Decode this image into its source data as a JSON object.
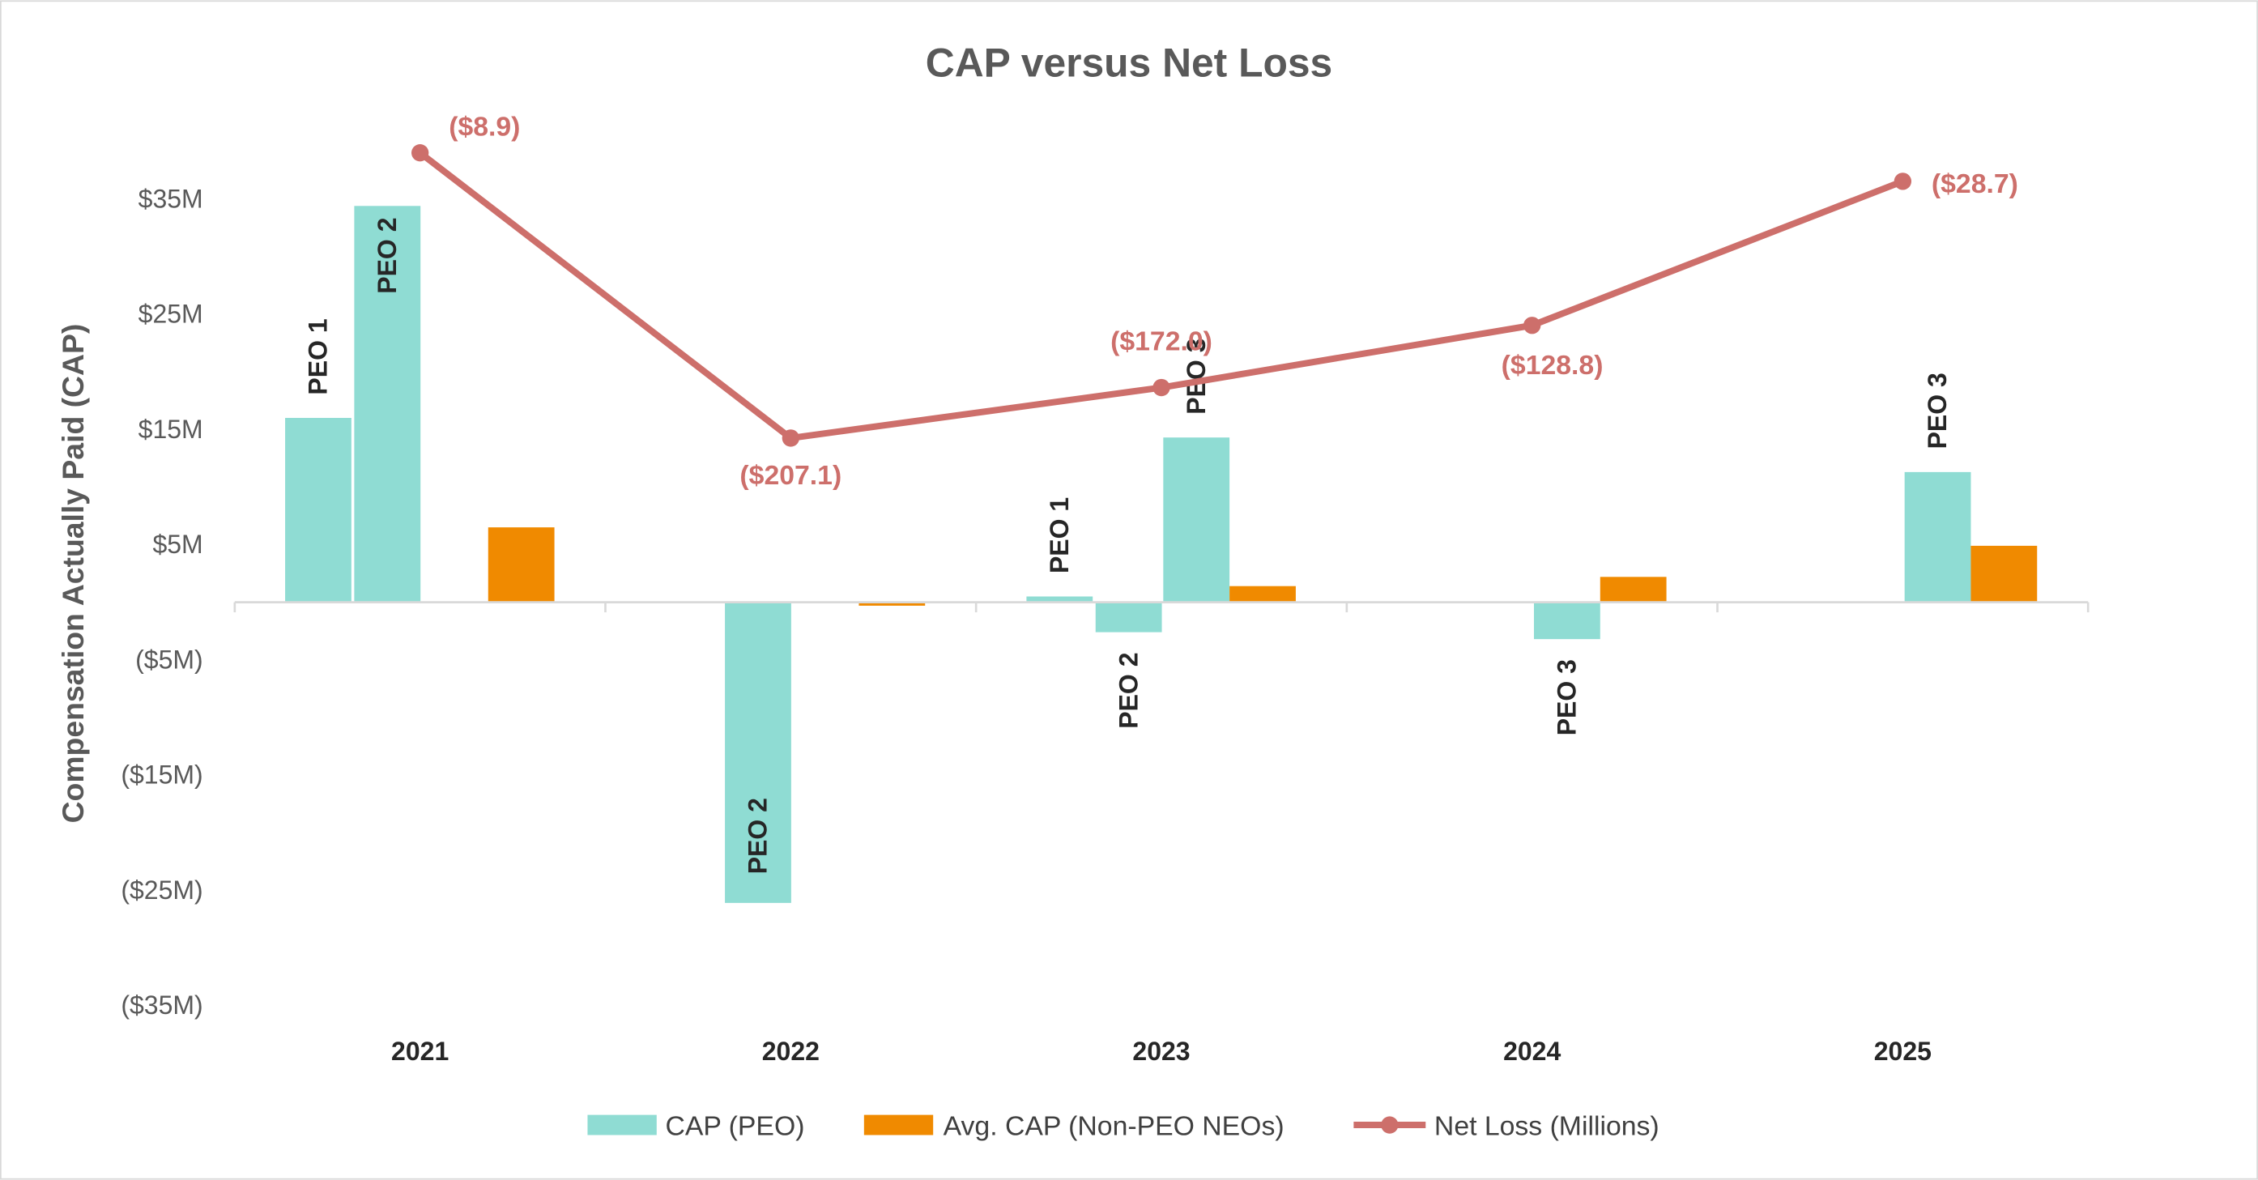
{
  "chart_data": {
    "type": "bar",
    "title": "CAP versus Net Loss",
    "ylabel": "Compensation Actually Paid (CAP)",
    "xlabel": "",
    "categories": [
      "2021",
      "2022",
      "2023",
      "2024",
      "2025"
    ],
    "y_ticks": [
      "$35M",
      "$25M",
      "$15M",
      "$5M",
      "($5M)",
      "($15M)",
      "($25M)",
      "($35M)"
    ],
    "y_tick_values": [
      35,
      25,
      15,
      5,
      -5,
      -15,
      -25,
      -35
    ],
    "ylim": [
      -35,
      40
    ],
    "grid": false,
    "legend_position": "bottom",
    "series": [
      {
        "name": "CAP (PEO)",
        "color": "#8FDCD3",
        "type": "bar",
        "sub_bars": [
          {
            "label": "PEO 1",
            "values": [
              16.0,
              null,
              0.5,
              null,
              null
            ]
          },
          {
            "label": "PEO 2",
            "values": [
              34.4,
              -26.1,
              -2.6,
              null,
              null
            ]
          },
          {
            "label": "PEO 3",
            "values": [
              null,
              null,
              14.3,
              -3.2,
              11.3
            ]
          }
        ]
      },
      {
        "name": "Avg. CAP (Non-PEO NEOs)",
        "color": "#F08A00",
        "type": "bar",
        "values": [
          6.5,
          -0.3,
          1.4,
          2.2,
          4.9
        ]
      },
      {
        "name": "Net Loss (Millions)",
        "color": "#CD6F6B",
        "type": "line",
        "axis": "secondary-hidden",
        "values": [
          -8.9,
          -207.1,
          -172.0,
          -128.8,
          -28.7
        ],
        "data_labels": [
          "($8.9)",
          "($207.1)",
          "($172.0)",
          "($128.8)",
          "($28.7)"
        ]
      }
    ]
  }
}
